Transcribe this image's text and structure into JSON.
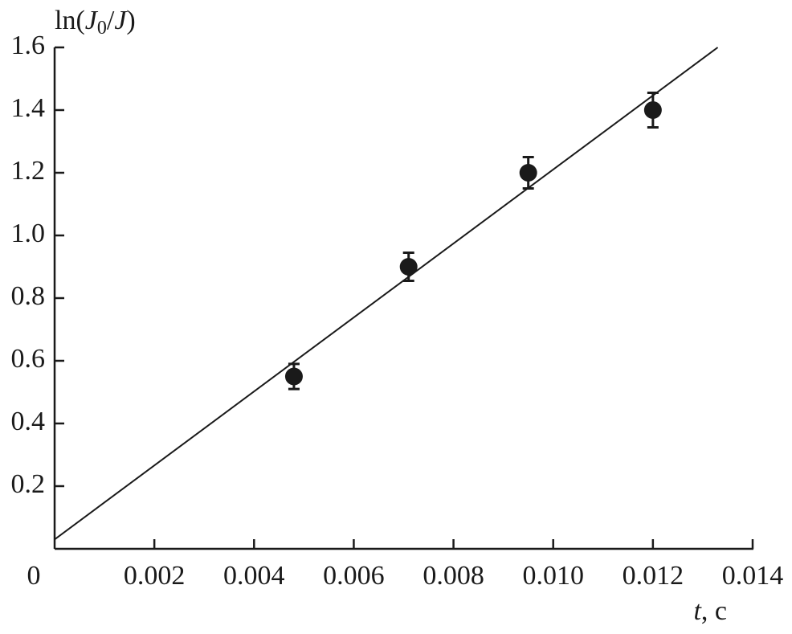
{
  "chart_data": {
    "type": "scatter",
    "y_label": [
      "ln(",
      "J",
      "0",
      "/",
      "J",
      ")"
    ],
    "x_label": [
      "t",
      ", c"
    ],
    "xlim": [
      0,
      0.014
    ],
    "ylim": [
      0,
      1.6
    ],
    "xticks": [
      0,
      0.002,
      0.004,
      0.006,
      0.008,
      {
        "value": 0.01,
        "label": "0.010"
      },
      0.012,
      0.014
    ],
    "yticks": [
      0.2,
      0.4,
      0.6,
      0.8,
      {
        "value": 1,
        "label": "1.0"
      },
      1.2,
      1.4,
      1.6
    ],
    "color": "#1a1a1a",
    "x": [
      0.0048,
      0.0071,
      0.0095,
      0.012
    ],
    "values": [
      0.55,
      0.9,
      1.2,
      1.4
    ],
    "errors": [
      0.04,
      0.045,
      0.05,
      0.055
    ],
    "fit": {
      "x": [
        0,
        0.0133
      ],
      "values": [
        0.03,
        1.6
      ]
    }
  }
}
